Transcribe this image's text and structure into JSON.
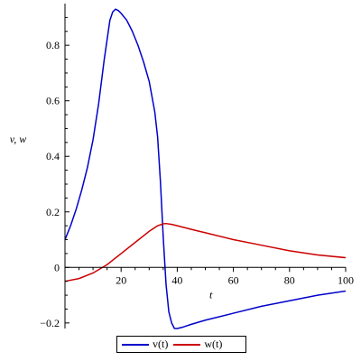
{
  "chart_data": {
    "type": "line",
    "title": "",
    "xlabel": "t",
    "ylabel": "v, w",
    "xlim": [
      0,
      100
    ],
    "ylim": [
      -0.22,
      0.95
    ],
    "grid": false,
    "legend_position": "bottom",
    "x_ticks": [
      20,
      40,
      60,
      80,
      100
    ],
    "x_tick_labels": [
      "20",
      "40",
      "60",
      "80",
      "100"
    ],
    "y_ticks": [
      -0.2,
      0,
      0.2,
      0.4,
      0.6,
      0.8
    ],
    "y_tick_labels": [
      "−0.2",
      "0",
      "0.2",
      "0.4",
      "0.6",
      "0.8"
    ],
    "series": [
      {
        "name": "v(t)",
        "color": "#0000cc",
        "x": [
          0,
          2,
          4,
          6,
          8,
          10,
          12,
          14,
          16,
          17,
          18,
          19,
          20,
          22,
          24,
          26,
          28,
          30,
          32,
          33,
          34,
          35,
          36,
          37,
          38,
          39,
          40,
          42,
          45,
          50,
          60,
          70,
          80,
          90,
          100
        ],
        "y": [
          0.1,
          0.15,
          0.21,
          0.28,
          0.36,
          0.46,
          0.59,
          0.75,
          0.89,
          0.92,
          0.93,
          0.925,
          0.915,
          0.89,
          0.85,
          0.8,
          0.74,
          0.67,
          0.56,
          0.47,
          0.31,
          0.11,
          -0.06,
          -0.16,
          -0.2,
          -0.22,
          -0.22,
          -0.215,
          -0.205,
          -0.19,
          -0.165,
          -0.14,
          -0.12,
          -0.1,
          -0.085
        ]
      },
      {
        "name": "w(t)",
        "color": "#cc0000",
        "x": [
          0,
          5,
          10,
          15,
          20,
          25,
          30,
          33,
          35,
          36,
          38,
          40,
          45,
          50,
          60,
          70,
          80,
          90,
          100
        ],
        "y": [
          -0.05,
          -0.04,
          -0.02,
          0.01,
          0.05,
          0.09,
          0.13,
          0.15,
          0.157,
          0.158,
          0.155,
          0.15,
          0.137,
          0.125,
          0.1,
          0.08,
          0.06,
          0.045,
          0.035
        ]
      }
    ]
  }
}
